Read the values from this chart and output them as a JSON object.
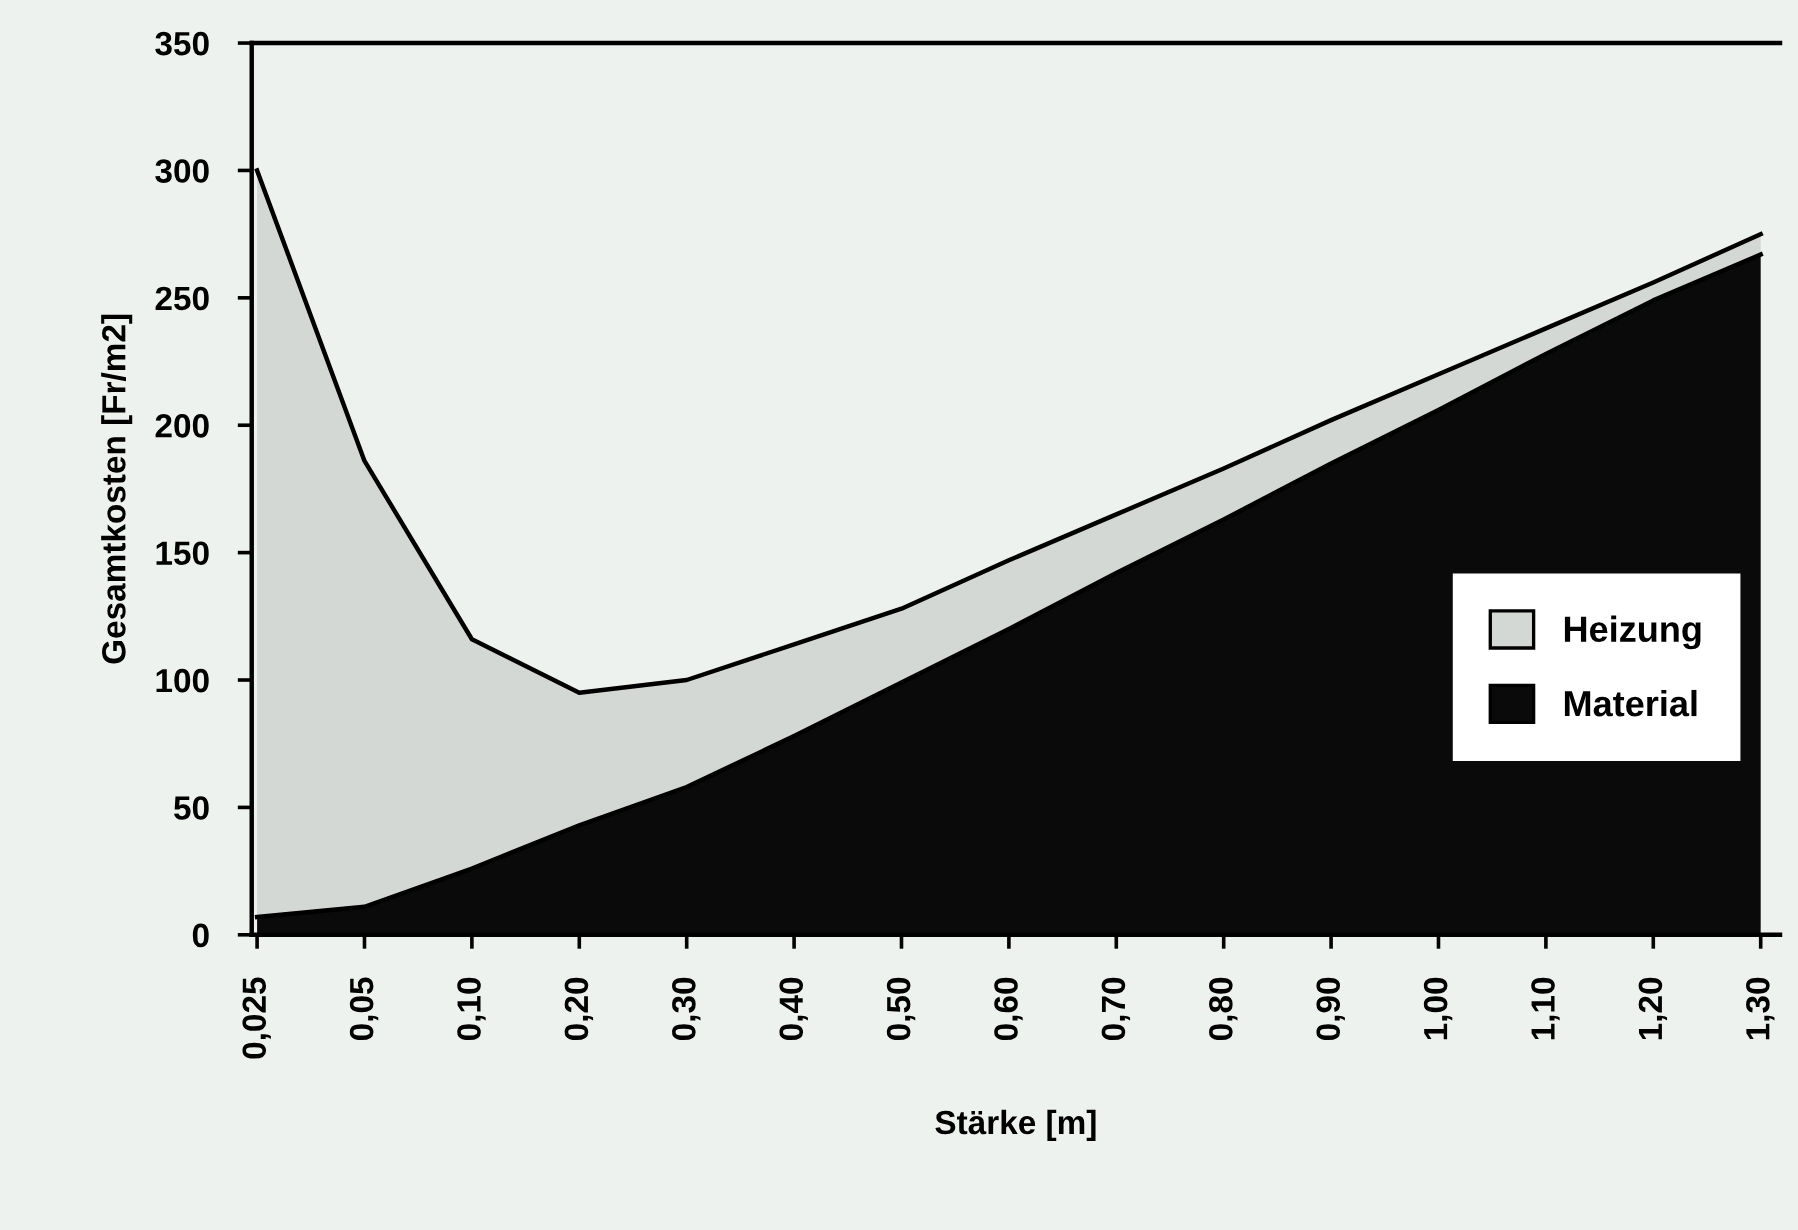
{
  "chart_data": {
    "type": "area",
    "stacked": true,
    "xlabel": "Stärke [m]",
    "ylabel": "Gesamtkosten [Fr/m2]",
    "categories": [
      "0,025",
      "0,05",
      "0,10",
      "0,20",
      "0,30",
      "0,40",
      "0,50",
      "0,60",
      "0,70",
      "0,80",
      "0,90",
      "1,00",
      "1,10",
      "1,20",
      "1,30"
    ],
    "series": [
      {
        "name": "Material",
        "color": "#0a0a0a",
        "values": [
          7,
          11,
          26,
          43,
          58,
          78,
          99,
          120,
          142,
          163,
          185,
          206,
          228,
          249,
          267
        ]
      },
      {
        "name": "Heizung",
        "color": "#d4d8d4",
        "values": [
          293,
          175,
          90,
          52,
          42,
          36,
          29,
          27,
          23,
          20,
          17,
          14,
          10,
          7,
          8
        ]
      }
    ],
    "ylim": [
      0,
      350
    ],
    "yticks": [
      0,
      50,
      100,
      150,
      200,
      250,
      300,
      350
    ],
    "grid": false,
    "legend": "right"
  }
}
